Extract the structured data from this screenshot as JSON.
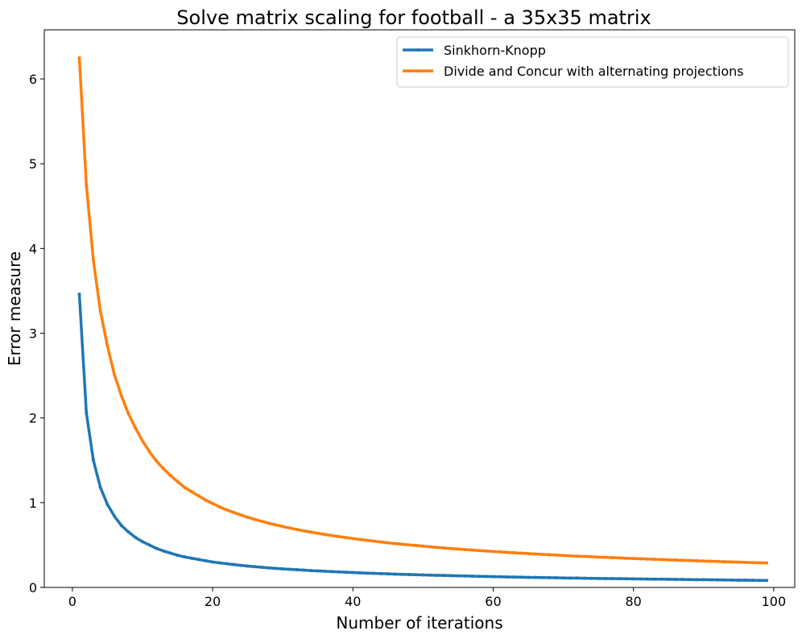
{
  "chart_data": {
    "type": "line",
    "title": "Solve matrix scaling for football - a 35x35 matrix",
    "xlabel": "Number of iterations",
    "ylabel": "Error measure",
    "xlim": [
      -4,
      103
    ],
    "ylim": [
      0,
      6.58
    ],
    "xticks": [
      0,
      20,
      40,
      60,
      80,
      100
    ],
    "yticks": [
      0,
      1,
      2,
      3,
      4,
      5,
      6
    ],
    "legend_position": "top-right",
    "grid": false,
    "x": [
      1,
      2,
      3,
      4,
      5,
      6,
      7,
      8,
      9,
      10,
      11,
      12,
      13,
      14,
      15,
      16,
      17,
      18,
      19,
      20,
      21,
      22,
      23,
      24,
      25,
      26,
      27,
      28,
      29,
      30,
      31,
      32,
      33,
      34,
      35,
      36,
      37,
      38,
      39,
      40,
      41,
      42,
      43,
      44,
      45,
      46,
      47,
      48,
      49,
      50,
      51,
      52,
      53,
      54,
      55,
      56,
      57,
      58,
      59,
      60,
      61,
      62,
      63,
      64,
      65,
      66,
      67,
      68,
      69,
      70,
      71,
      72,
      73,
      74,
      75,
      76,
      77,
      78,
      79,
      80,
      81,
      82,
      83,
      84,
      85,
      86,
      87,
      88,
      89,
      90,
      91,
      92,
      93,
      94,
      95,
      96,
      97,
      98,
      99
    ],
    "series": [
      {
        "name": "Sinkhorn-Knopp",
        "color": "#1f77b4",
        "values": [
          3.46,
          2.06,
          1.5,
          1.18,
          0.98,
          0.84,
          0.73,
          0.655,
          0.59,
          0.54,
          0.5,
          0.46,
          0.43,
          0.405,
          0.38,
          0.36,
          0.345,
          0.33,
          0.315,
          0.3,
          0.29,
          0.28,
          0.27,
          0.26,
          0.252,
          0.245,
          0.238,
          0.231,
          0.225,
          0.219,
          0.214,
          0.209,
          0.204,
          0.199,
          0.195,
          0.191,
          0.187,
          0.183,
          0.179,
          0.176,
          0.172,
          0.169,
          0.166,
          0.163,
          0.16,
          0.157,
          0.155,
          0.152,
          0.15,
          0.147,
          0.145,
          0.143,
          0.141,
          0.139,
          0.137,
          0.135,
          0.133,
          0.131,
          0.129,
          0.127,
          0.126,
          0.124,
          0.122,
          0.121,
          0.119,
          0.118,
          0.116,
          0.115,
          0.114,
          0.112,
          0.111,
          0.11,
          0.108,
          0.107,
          0.106,
          0.105,
          0.104,
          0.103,
          0.102,
          0.101,
          0.1,
          0.099,
          0.098,
          0.097,
          0.096,
          0.095,
          0.094,
          0.093,
          0.092,
          0.091,
          0.09,
          0.089,
          0.088,
          0.087,
          0.086,
          0.085,
          0.084,
          0.083,
          0.082
        ]
      },
      {
        "name": "Divide and Concur with alternating projections",
        "color": "#ff7f0e",
        "values": [
          6.25,
          4.75,
          3.86,
          3.26,
          2.85,
          2.51,
          2.26,
          2.05,
          1.88,
          1.73,
          1.6,
          1.49,
          1.4,
          1.32,
          1.25,
          1.18,
          1.13,
          1.08,
          1.03,
          0.99,
          0.95,
          0.915,
          0.885,
          0.855,
          0.828,
          0.803,
          0.78,
          0.758,
          0.738,
          0.719,
          0.701,
          0.684,
          0.668,
          0.653,
          0.639,
          0.625,
          0.612,
          0.6,
          0.588,
          0.577,
          0.566,
          0.556,
          0.546,
          0.536,
          0.527,
          0.518,
          0.51,
          0.502,
          0.494,
          0.487,
          0.479,
          0.472,
          0.466,
          0.459,
          0.453,
          0.447,
          0.441,
          0.435,
          0.43,
          0.424,
          0.419,
          0.414,
          0.409,
          0.404,
          0.399,
          0.395,
          0.39,
          0.386,
          0.382,
          0.377,
          0.373,
          0.369,
          0.366,
          0.362,
          0.358,
          0.355,
          0.351,
          0.348,
          0.344,
          0.341,
          0.338,
          0.335,
          0.332,
          0.329,
          0.326,
          0.323,
          0.32,
          0.317,
          0.314,
          0.311,
          0.309,
          0.306,
          0.303,
          0.301,
          0.298,
          0.296,
          0.293,
          0.291,
          0.289
        ]
      }
    ]
  }
}
